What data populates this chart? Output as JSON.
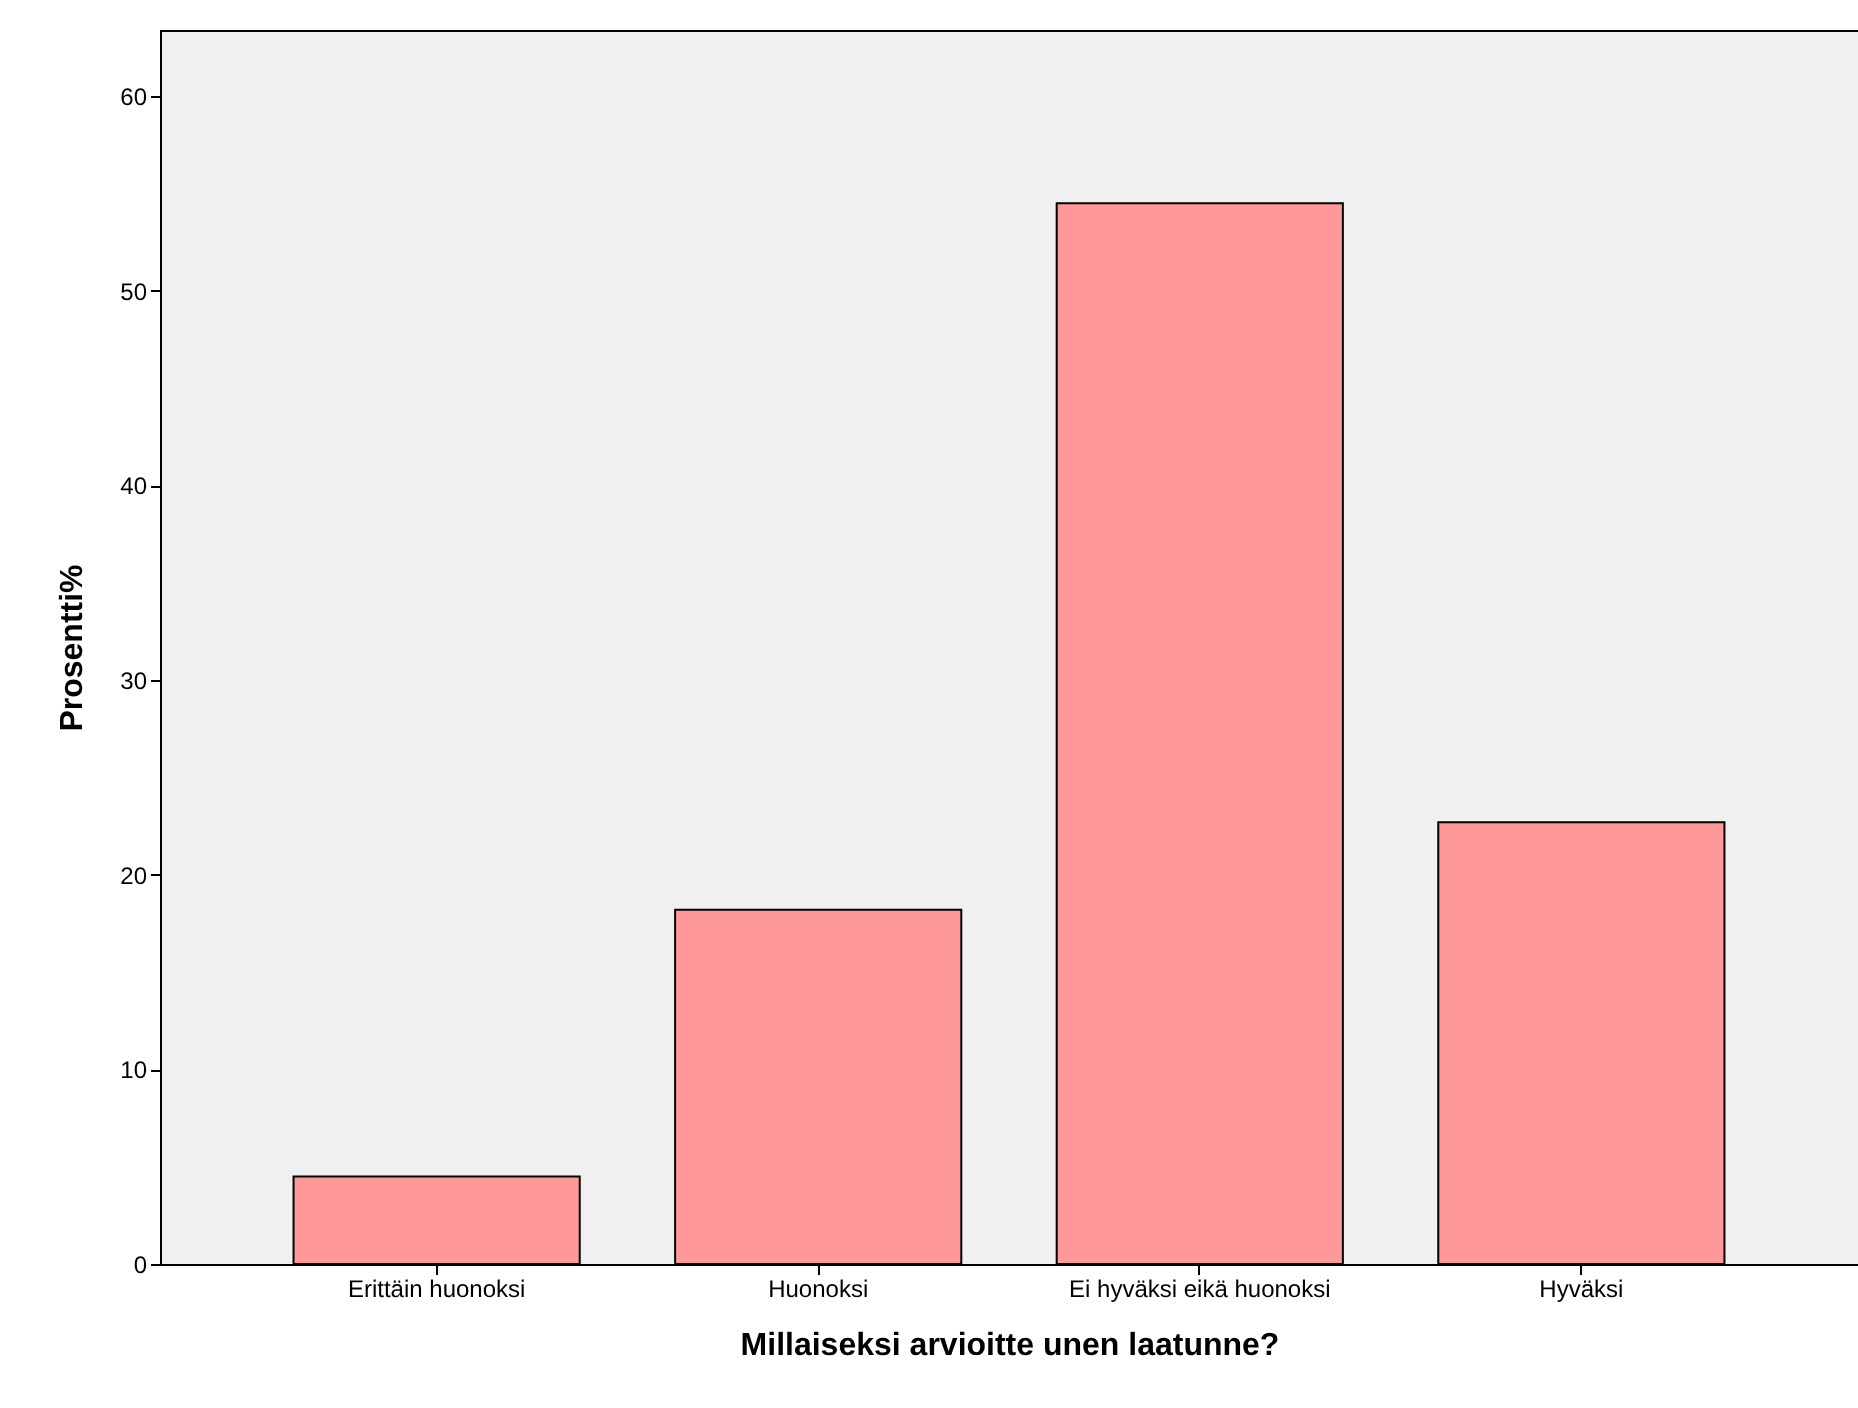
{
  "chart_data": {
    "type": "bar",
    "xlabel": "Millaiseksi arvioitte unen laatunne?",
    "ylabel": "Prosentti%",
    "categories": [
      "Erittäin huonoksi",
      "Huonoksi",
      "Ei hyväksi eikä huonoksi",
      "Hyväksi"
    ],
    "values": [
      4.5,
      18.2,
      54.5,
      22.7
    ],
    "color": "#ff9999",
    "ylim": [
      0,
      63.4
    ],
    "yticks": [
      0,
      10,
      20,
      30,
      40,
      50,
      60
    ],
    "grid": false
  }
}
